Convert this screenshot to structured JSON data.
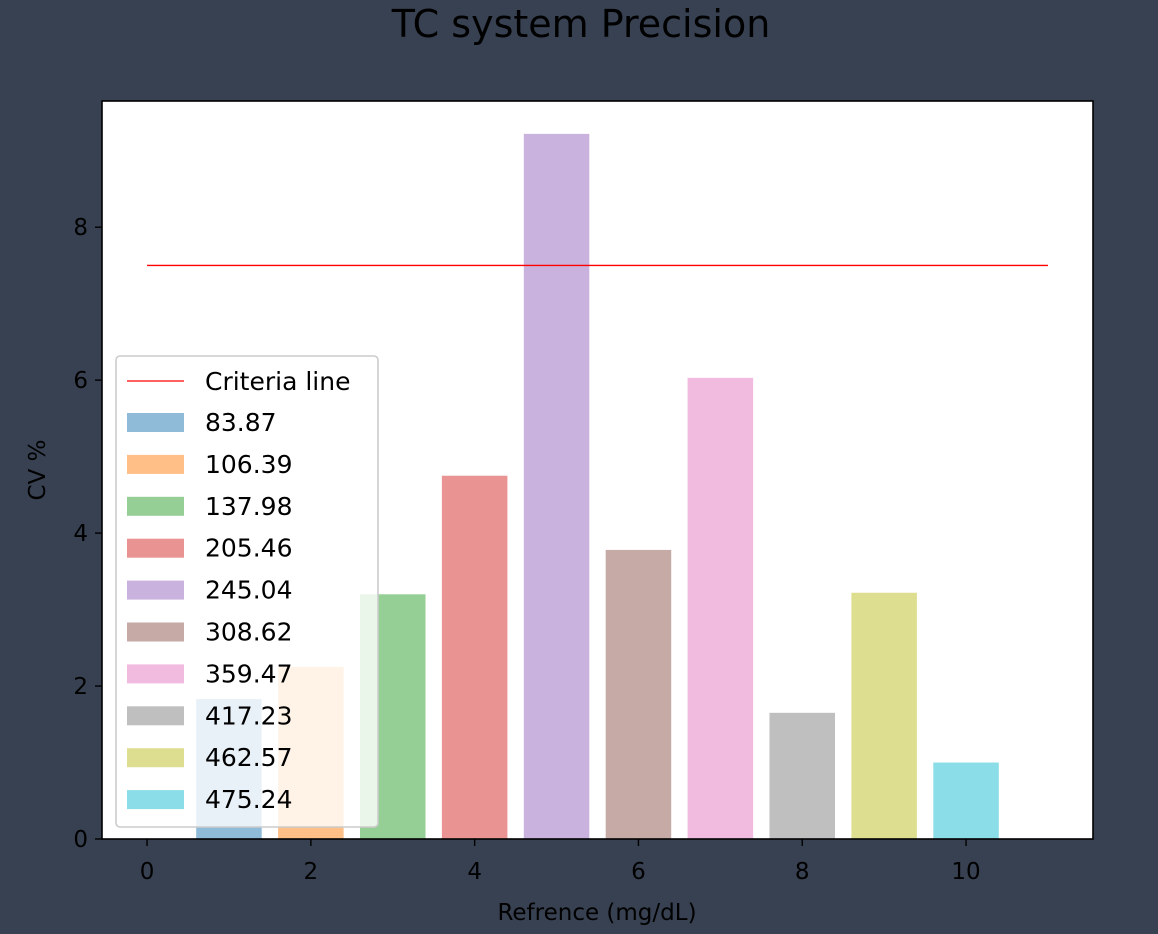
{
  "chart_data": {
    "type": "bar",
    "title": "TC system Precision",
    "xlabel": "Refrence (mg/dL)",
    "ylabel": "CV %",
    "xlim": [
      -0.55,
      11.55
    ],
    "ylim": [
      0,
      9.65
    ],
    "xticks": [
      0,
      2,
      4,
      6,
      8,
      10
    ],
    "yticks": [
      0,
      2,
      4,
      6,
      8
    ],
    "grid": false,
    "legend_position": "lower-left",
    "criteria_line": {
      "name": "Criteria line",
      "y": 7.5,
      "x_start": 0,
      "x_end": 11,
      "color": "#ff0000"
    },
    "series": [
      {
        "name": "83.87",
        "x": 1,
        "value": 1.83,
        "color": "#1f77b4"
      },
      {
        "name": "106.39",
        "x": 2,
        "value": 2.25,
        "color": "#ff7f0e"
      },
      {
        "name": "137.98",
        "x": 3,
        "value": 3.2,
        "color": "#2ca02c"
      },
      {
        "name": "205.46",
        "x": 4,
        "value": 4.75,
        "color": "#d62728"
      },
      {
        "name": "245.04",
        "x": 5,
        "value": 9.22,
        "color": "#9467bd"
      },
      {
        "name": "308.62",
        "x": 6,
        "value": 3.78,
        "color": "#8c564b"
      },
      {
        "name": "359.47",
        "x": 7,
        "value": 6.03,
        "color": "#e377c2"
      },
      {
        "name": "417.23",
        "x": 8,
        "value": 1.65,
        "color": "#7f7f7f"
      },
      {
        "name": "462.57",
        "x": 9,
        "value": 3.22,
        "color": "#bcbd22"
      },
      {
        "name": "475.24",
        "x": 10,
        "value": 1.0,
        "color": "#17becf"
      }
    ]
  }
}
